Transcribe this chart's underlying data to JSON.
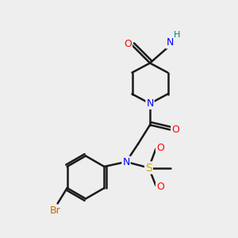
{
  "bg_color": "#eeeeee",
  "bond_color": "#1a1a1a",
  "bond_width": 1.8,
  "atom_colors": {
    "O": "#ff0000",
    "N": "#0000ff",
    "S": "#ccaa00",
    "Br": "#cc6600",
    "H": "#008080",
    "C": "#1a1a1a"
  }
}
